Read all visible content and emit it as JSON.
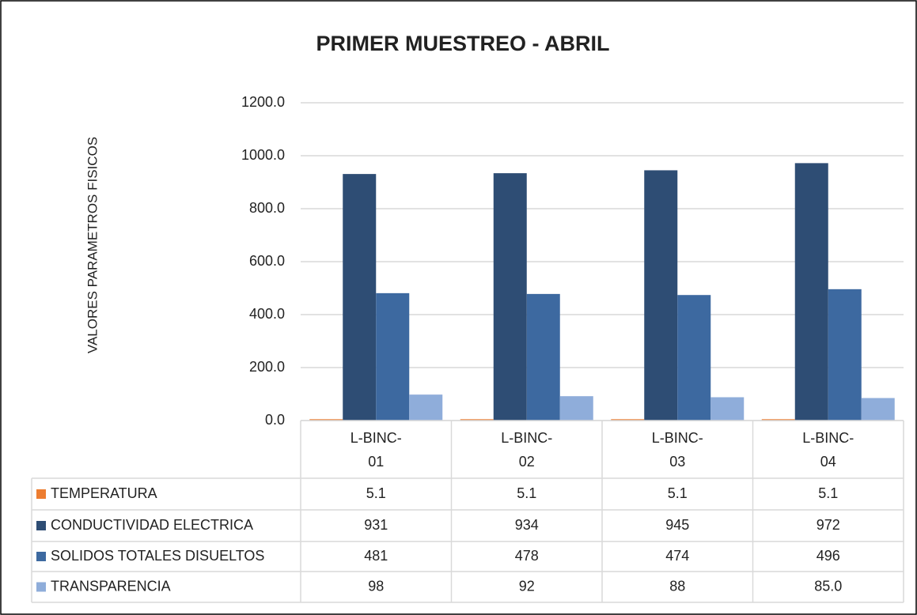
{
  "chart_data": {
    "type": "bar",
    "title": "PRIMER MUESTREO - ABRIL",
    "y_label": "VALORES PARAMETROS FISICOS",
    "categories": [
      "L-BINC-01",
      "L-BINC-02",
      "L-BINC-03",
      "L-BINC-04"
    ],
    "series": [
      {
        "name": "TEMPERATURA",
        "color": "#ed7d31",
        "values": [
          5.1,
          5.1,
          5.1,
          5.1
        ]
      },
      {
        "name": "CONDUCTIVIDAD ELECTRICA",
        "color": "#2e4d74",
        "values": [
          931,
          934,
          945,
          972
        ]
      },
      {
        "name": "SOLIDOS TOTALES DISUELTOS",
        "color": "#3d69a0",
        "values": [
          481,
          478,
          474,
          496
        ]
      },
      {
        "name": "TRANSPARENCIA",
        "color": "#8fadda",
        "values": [
          98,
          92,
          88,
          85
        ],
        "value_labels": [
          "98",
          "92",
          "88",
          "85.0"
        ]
      }
    ],
    "ylim": [
      0,
      1200
    ],
    "yticks": [
      {
        "value": 0,
        "label": "0.0"
      },
      {
        "value": 200,
        "label": "200.0"
      },
      {
        "value": 400,
        "label": "400.0"
      },
      {
        "value": 600,
        "label": "600.0"
      },
      {
        "value": 800,
        "label": "800.0"
      },
      {
        "value": 1000,
        "label": "1000.0"
      },
      {
        "value": 1200,
        "label": "1200.0"
      }
    ],
    "grid": true
  }
}
